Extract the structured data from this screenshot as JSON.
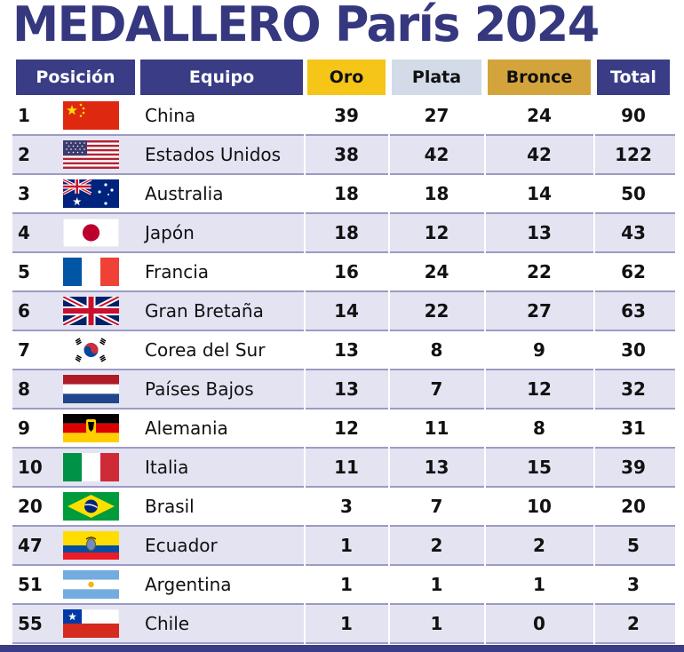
{
  "title": "MEDALLERO París 2024",
  "headers": {
    "posicion": "Posición",
    "equipo": "Equipo",
    "oro": "Oro",
    "plata": "Plata",
    "bronce": "Bronce",
    "total": "Total"
  },
  "colors": {
    "title": "#35377f",
    "header_navy": "#3a3c86",
    "oro": "#f5c518",
    "plata": "#d3dbe8",
    "bronce": "#d4a43c",
    "row_alt": "#e4e3f2"
  },
  "rows": [
    {
      "pos": "1",
      "team": "China",
      "flag": "china-flag-icon",
      "oro": "39",
      "plata": "27",
      "bronce": "24",
      "total": "90"
    },
    {
      "pos": "2",
      "team": "Estados Unidos",
      "flag": "usa-flag-icon",
      "oro": "38",
      "plata": "42",
      "bronce": "42",
      "total": "122"
    },
    {
      "pos": "3",
      "team": "Australia",
      "flag": "australia-flag-icon",
      "oro": "18",
      "plata": "18",
      "bronce": "14",
      "total": "50"
    },
    {
      "pos": "4",
      "team": "Japón",
      "flag": "japan-flag-icon",
      "oro": "18",
      "plata": "12",
      "bronce": "13",
      "total": "43"
    },
    {
      "pos": "5",
      "team": "Francia",
      "flag": "france-flag-icon",
      "oro": "16",
      "plata": "24",
      "bronce": "22",
      "total": "62"
    },
    {
      "pos": "6",
      "team": "Gran Bretaña",
      "flag": "uk-flag-icon",
      "oro": "14",
      "plata": "22",
      "bronce": "27",
      "total": "63"
    },
    {
      "pos": "7",
      "team": "Corea del Sur",
      "flag": "korea-flag-icon",
      "oro": "13",
      "plata": "8",
      "bronce": "9",
      "total": "30"
    },
    {
      "pos": "8",
      "team": "Países Bajos",
      "flag": "netherlands-flag-icon",
      "oro": "13",
      "plata": "7",
      "bronce": "12",
      "total": "32"
    },
    {
      "pos": "9",
      "team": "Alemania",
      "flag": "germany-flag-icon",
      "oro": "12",
      "plata": "11",
      "bronce": "8",
      "total": "31"
    },
    {
      "pos": "10",
      "team": "Italia",
      "flag": "italy-flag-icon",
      "oro": "11",
      "plata": "13",
      "bronce": "15",
      "total": "39"
    },
    {
      "pos": "20",
      "team": "Brasil",
      "flag": "brazil-flag-icon",
      "oro": "3",
      "plata": "7",
      "bronce": "10",
      "total": "20"
    },
    {
      "pos": "47",
      "team": "Ecuador",
      "flag": "ecuador-flag-icon",
      "oro": "1",
      "plata": "2",
      "bronce": "2",
      "total": "5"
    },
    {
      "pos": "51",
      "team": "Argentina",
      "flag": "argentina-flag-icon",
      "oro": "1",
      "plata": "1",
      "bronce": "1",
      "total": "3"
    },
    {
      "pos": "55",
      "team": "Chile",
      "flag": "chile-flag-icon",
      "oro": "1",
      "plata": "1",
      "bronce": "0",
      "total": "2"
    }
  ]
}
